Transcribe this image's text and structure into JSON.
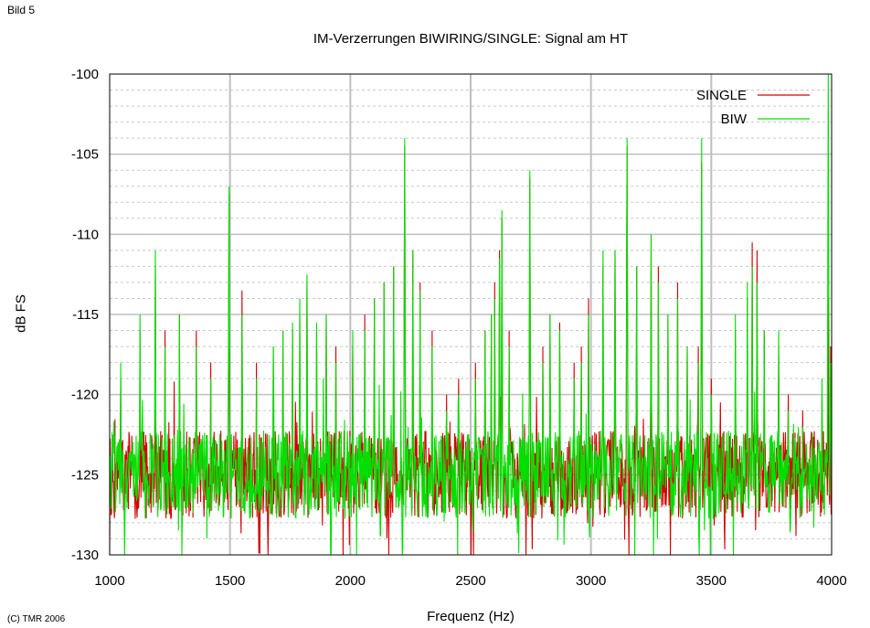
{
  "header": {
    "corner_label": "Bild 5"
  },
  "footer": {
    "copyright": "(C) TMR 2006"
  },
  "colors": {
    "single": "#d40000",
    "biw": "#00e000",
    "grid_major": "#bfbfbf",
    "grid_minor": "#c8c8c8"
  },
  "chart_data": {
    "type": "line",
    "title": "IM-Verzerrungen BIWIRING/SINGLE: Signal am HT",
    "xlabel": "Frequenz (Hz)",
    "ylabel": "dB FS",
    "xlim": [
      1000,
      4000
    ],
    "ylim": [
      -130,
      -100
    ],
    "xticks": [
      1000,
      1500,
      2000,
      2500,
      3000,
      3500,
      4000
    ],
    "yticks": [
      -100,
      -105,
      -110,
      -115,
      -120,
      -125,
      -130
    ],
    "xtick_labels": [
      "1000",
      "1500",
      "2000",
      "2500",
      "3000",
      "3500",
      "4000"
    ],
    "ytick_labels": [
      "-100",
      "-105",
      "-110",
      "-115",
      "-120",
      "-125",
      "-130"
    ],
    "grid": true,
    "legend_position": "top-right",
    "noise_floor_db": -125,
    "series": [
      {
        "name": "SINGLE",
        "color": "#d40000",
        "peaks": [
          [
            1045,
            -119
          ],
          [
            1125,
            -116
          ],
          [
            1190,
            -112
          ],
          [
            1230,
            -116
          ],
          [
            1290,
            -115
          ],
          [
            1360,
            -116
          ],
          [
            1420,
            -118
          ],
          [
            1495,
            -107.5
          ],
          [
            1550,
            -113.5
          ],
          [
            1610,
            -118
          ],
          [
            1680,
            -117
          ],
          [
            1720,
            -116
          ],
          [
            1760,
            -116
          ],
          [
            1790,
            -115
          ],
          [
            1820,
            -113
          ],
          [
            1860,
            -116
          ],
          [
            1900,
            -115
          ],
          [
            1940,
            -117
          ],
          [
            2010,
            -117
          ],
          [
            2060,
            -115
          ],
          [
            2100,
            -114
          ],
          [
            2140,
            -113
          ],
          [
            2180,
            -112
          ],
          [
            2225,
            -104.5
          ],
          [
            2260,
            -111
          ],
          [
            2290,
            -113
          ],
          [
            2340,
            -116
          ],
          [
            2400,
            -120
          ],
          [
            2450,
            -119
          ],
          [
            2520,
            -118
          ],
          [
            2560,
            -116
          ],
          [
            2585,
            -115
          ],
          [
            2600,
            -113
          ],
          [
            2620,
            -111
          ],
          [
            2630,
            -109
          ],
          [
            2660,
            -116
          ],
          [
            2745,
            -106.5
          ],
          [
            2800,
            -117
          ],
          [
            2830,
            -115
          ],
          [
            2870,
            -115.5
          ],
          [
            2930,
            -118
          ],
          [
            2960,
            -117
          ],
          [
            2990,
            -114
          ],
          [
            3050,
            -112
          ],
          [
            3100,
            -111
          ],
          [
            3150,
            -104.5
          ],
          [
            3190,
            -112
          ],
          [
            3250,
            -110
          ],
          [
            3280,
            -112
          ],
          [
            3320,
            -115
          ],
          [
            3360,
            -113
          ],
          [
            3400,
            -117
          ],
          [
            3445,
            -117
          ],
          [
            3460,
            -105.5
          ],
          [
            3500,
            -119
          ],
          [
            3600,
            -116
          ],
          [
            3650,
            -114
          ],
          [
            3670,
            -110.5
          ],
          [
            3690,
            -111
          ],
          [
            3720,
            -116
          ],
          [
            3780,
            -117
          ],
          [
            3820,
            -120
          ],
          [
            3880,
            -121
          ],
          [
            3960,
            -120
          ],
          [
            3985,
            -114
          ],
          [
            3995,
            -117
          ]
        ]
      },
      {
        "name": "BIW",
        "color": "#00e000",
        "peaks": [
          [
            1045,
            -118
          ],
          [
            1125,
            -115
          ],
          [
            1190,
            -111
          ],
          [
            1230,
            -117
          ],
          [
            1290,
            -115
          ],
          [
            1360,
            -117
          ],
          [
            1420,
            -119
          ],
          [
            1495,
            -107
          ],
          [
            1550,
            -115
          ],
          [
            1610,
            -119
          ],
          [
            1680,
            -117
          ],
          [
            1720,
            -116
          ],
          [
            1760,
            -115.5
          ],
          [
            1790,
            -114
          ],
          [
            1820,
            -112.5
          ],
          [
            1860,
            -115.5
          ],
          [
            1900,
            -115
          ],
          [
            1940,
            -118
          ],
          [
            2010,
            -116
          ],
          [
            2060,
            -116
          ],
          [
            2100,
            -114
          ],
          [
            2140,
            -113
          ],
          [
            2180,
            -112
          ],
          [
            2225,
            -104
          ],
          [
            2260,
            -111
          ],
          [
            2290,
            -113.5
          ],
          [
            2340,
            -117
          ],
          [
            2400,
            -121
          ],
          [
            2450,
            -120
          ],
          [
            2520,
            -119
          ],
          [
            2560,
            -116
          ],
          [
            2585,
            -115
          ],
          [
            2600,
            -114
          ],
          [
            2620,
            -111.5
          ],
          [
            2630,
            -108.5
          ],
          [
            2660,
            -117
          ],
          [
            2745,
            -106
          ],
          [
            2800,
            -118
          ],
          [
            2830,
            -115
          ],
          [
            2870,
            -116
          ],
          [
            2930,
            -119
          ],
          [
            2960,
            -118
          ],
          [
            2990,
            -115
          ],
          [
            3050,
            -111
          ],
          [
            3100,
            -111
          ],
          [
            3150,
            -104
          ],
          [
            3190,
            -112
          ],
          [
            3250,
            -110
          ],
          [
            3280,
            -113
          ],
          [
            3320,
            -115
          ],
          [
            3360,
            -114
          ],
          [
            3400,
            -117
          ],
          [
            3445,
            -118
          ],
          [
            3460,
            -104
          ],
          [
            3500,
            -120
          ],
          [
            3600,
            -115
          ],
          [
            3650,
            -113
          ],
          [
            3670,
            -112
          ],
          [
            3690,
            -113
          ],
          [
            3720,
            -116
          ],
          [
            3780,
            -116
          ],
          [
            3820,
            -121
          ],
          [
            3880,
            -122
          ],
          [
            3960,
            -119
          ],
          [
            3985,
            -100
          ],
          [
            3995,
            -118
          ]
        ]
      }
    ]
  }
}
